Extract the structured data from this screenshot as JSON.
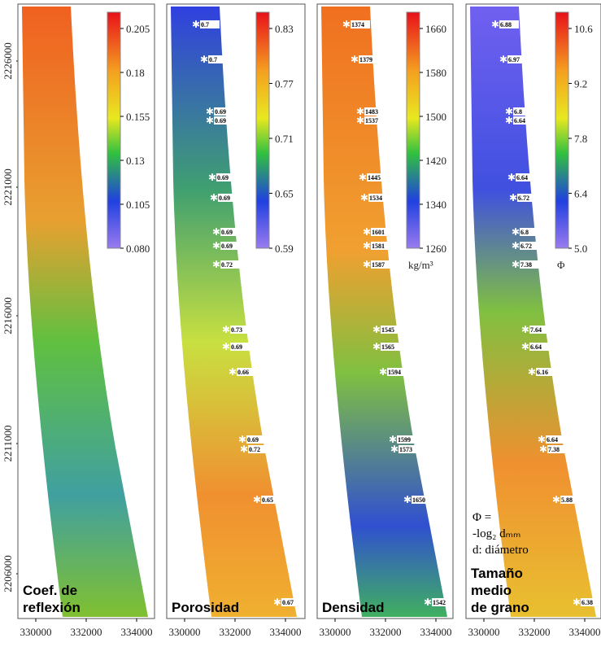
{
  "y_axis": {
    "ticks": [
      2226000,
      2221000,
      2216000,
      2211000,
      2206000
    ]
  },
  "panels": [
    {
      "label": [
        "Coef. de",
        "reflexión"
      ],
      "x_ticks": [
        330000,
        332000,
        334000
      ],
      "colorbar": {
        "ticks": [
          0.205,
          0.18,
          0.155,
          0.13,
          0.105,
          {
            "value": 0.08,
            "label": "0.080"
          }
        ]
      },
      "samples": []
    },
    {
      "label": [
        "Porosidad"
      ],
      "x_ticks": [
        330000,
        332000,
        334000
      ],
      "colorbar": {
        "ticks": [
          0.83,
          0.77,
          0.71,
          0.65,
          0.59
        ]
      },
      "samples": [
        0.7,
        0.7,
        0.69,
        0.69,
        0.69,
        0.69,
        0.69,
        0.69,
        0.72,
        0.73,
        0.69,
        0.66,
        0.69,
        0.72,
        0.65,
        0.67
      ]
    },
    {
      "label": [
        "Densidad"
      ],
      "x_ticks": [
        330000,
        332000,
        334000
      ],
      "colorbar": {
        "ticks": [
          1660,
          1580,
          1500,
          1420,
          1340,
          1260
        ],
        "unit": "kg/m³"
      },
      "samples": [
        1374,
        1379,
        1483,
        1537,
        1445,
        1534,
        1601,
        1581,
        1587,
        1545,
        1565,
        1594,
        1599,
        1573,
        1650,
        1542
      ]
    },
    {
      "label": [
        "Tamaño",
        "medio",
        "de grano"
      ],
      "x_ticks": [
        330000,
        332000,
        334000
      ],
      "colorbar": {
        "ticks": [
          10.6,
          9.2,
          7.8,
          6.4,
          {
            "value": 5,
            "label": "5.0"
          }
        ],
        "unit": "Φ"
      },
      "samples": [
        6.88,
        6.97,
        6.8,
        6.64,
        6.64,
        6.72,
        6.8,
        6.72,
        7.38,
        7.64,
        6.64,
        6.16,
        6.64,
        7.38,
        5.88,
        6.38
      ],
      "formula": [
        "Φ =",
        "-log₂ dₘₘ",
        "d: diámetro"
      ]
    }
  ]
}
